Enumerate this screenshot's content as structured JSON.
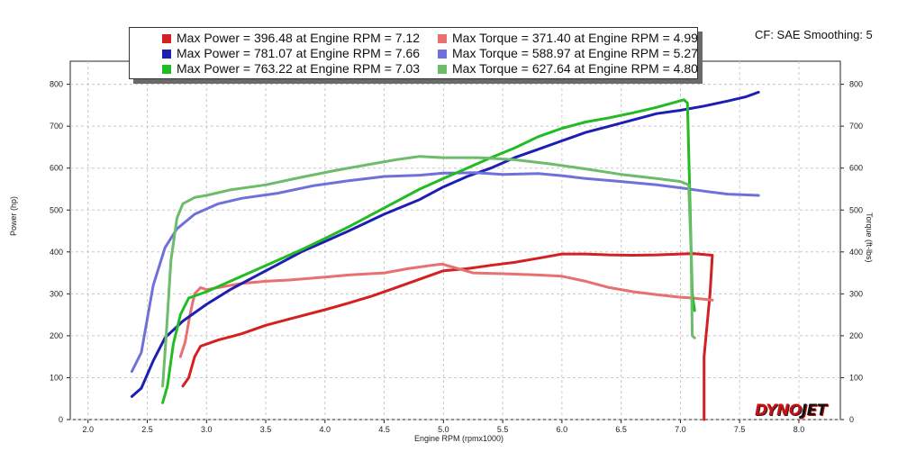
{
  "header": {
    "cf_label": "CF: SAE Smoothing: 5"
  },
  "logo": {
    "part1": "DYNO",
    "part2": "JET"
  },
  "chart_data": {
    "type": "line",
    "xlabel": "Engine RPM (rpmx1000)",
    "ylabel_left": "Power (hp)",
    "ylabel_right": "Torque (ft-lbs)",
    "xlim": [
      1.85,
      8.35
    ],
    "ylim": [
      0,
      855
    ],
    "x_ticks": [
      "2.0",
      "2.5",
      "3.0",
      "3.5",
      "4.0",
      "4.5",
      "5.0",
      "5.5",
      "6.0",
      "6.5",
      "7.0",
      "7.5",
      "8.0"
    ],
    "y_ticks": [
      "0",
      "100",
      "200",
      "300",
      "400",
      "500",
      "600",
      "700",
      "800"
    ],
    "grid": true,
    "legend": [
      {
        "label": "Max Power = 396.48 at Engine RPM = 7.12",
        "color": "#d42020"
      },
      {
        "label": "Max Torque = 371.40 at Engine RPM = 4.99",
        "color": "#e87070"
      },
      {
        "label": "Max Power = 781.07 at Engine RPM = 7.66",
        "color": "#1e1eb4"
      },
      {
        "label": "Max Torque = 588.97 at Engine RPM = 5.27",
        "color": "#7070dc"
      },
      {
        "label": "Max Power = 763.22 at Engine RPM = 7.03",
        "color": "#22bb22"
      },
      {
        "label": "Max Torque = 627.64 at Engine RPM = 4.80",
        "color": "#6cbc6c"
      }
    ],
    "series": [
      {
        "color": "#d42020",
        "points": [
          [
            2.8,
            80
          ],
          [
            2.85,
            100
          ],
          [
            2.9,
            150
          ],
          [
            2.95,
            175
          ],
          [
            3.0,
            180
          ],
          [
            3.1,
            190
          ],
          [
            3.3,
            205
          ],
          [
            3.5,
            225
          ],
          [
            3.7,
            240
          ],
          [
            4.0,
            262
          ],
          [
            4.2,
            278
          ],
          [
            4.4,
            295
          ],
          [
            4.6,
            315
          ],
          [
            4.8,
            335
          ],
          [
            5.0,
            355
          ],
          [
            5.2,
            360
          ],
          [
            5.4,
            368
          ],
          [
            5.6,
            375
          ],
          [
            5.8,
            385
          ],
          [
            6.0,
            395
          ],
          [
            6.2,
            395
          ],
          [
            6.4,
            393
          ],
          [
            6.6,
            392
          ],
          [
            6.8,
            393
          ],
          [
            7.0,
            395
          ],
          [
            7.12,
            396
          ],
          [
            7.27,
            392
          ],
          [
            7.25,
            300
          ],
          [
            7.2,
            150
          ],
          [
            7.2,
            0
          ]
        ]
      },
      {
        "color": "#e87070",
        "points": [
          [
            2.78,
            150
          ],
          [
            2.82,
            185
          ],
          [
            2.86,
            250
          ],
          [
            2.9,
            300
          ],
          [
            2.95,
            315
          ],
          [
            3.0,
            310
          ],
          [
            3.1,
            315
          ],
          [
            3.3,
            325
          ],
          [
            3.5,
            330
          ],
          [
            3.7,
            333
          ],
          [
            4.0,
            340
          ],
          [
            4.2,
            345
          ],
          [
            4.5,
            350
          ],
          [
            4.7,
            360
          ],
          [
            4.9,
            368
          ],
          [
            4.99,
            371
          ],
          [
            5.1,
            362
          ],
          [
            5.25,
            350
          ],
          [
            5.5,
            348
          ],
          [
            5.8,
            345
          ],
          [
            6.0,
            342
          ],
          [
            6.2,
            330
          ],
          [
            6.4,
            315
          ],
          [
            6.6,
            305
          ],
          [
            6.8,
            298
          ],
          [
            7.0,
            292
          ],
          [
            7.1,
            290
          ],
          [
            7.27,
            285
          ]
        ]
      },
      {
        "color": "#1e1eb4",
        "points": [
          [
            2.37,
            55
          ],
          [
            2.45,
            75
          ],
          [
            2.55,
            140
          ],
          [
            2.65,
            195
          ],
          [
            2.8,
            235
          ],
          [
            3.0,
            275
          ],
          [
            3.2,
            310
          ],
          [
            3.4,
            340
          ],
          [
            3.6,
            370
          ],
          [
            3.8,
            400
          ],
          [
            4.0,
            425
          ],
          [
            4.2,
            450
          ],
          [
            4.5,
            490
          ],
          [
            4.8,
            525
          ],
          [
            5.0,
            555
          ],
          [
            5.2,
            580
          ],
          [
            5.4,
            600
          ],
          [
            5.6,
            625
          ],
          [
            5.8,
            645
          ],
          [
            6.0,
            665
          ],
          [
            6.2,
            685
          ],
          [
            6.4,
            700
          ],
          [
            6.6,
            715
          ],
          [
            6.8,
            730
          ],
          [
            7.0,
            738
          ],
          [
            7.2,
            748
          ],
          [
            7.4,
            760
          ],
          [
            7.55,
            770
          ],
          [
            7.66,
            781
          ]
        ]
      },
      {
        "color": "#7070dc",
        "points": [
          [
            2.37,
            115
          ],
          [
            2.45,
            160
          ],
          [
            2.55,
            320
          ],
          [
            2.65,
            410
          ],
          [
            2.75,
            455
          ],
          [
            2.9,
            490
          ],
          [
            3.1,
            515
          ],
          [
            3.3,
            528
          ],
          [
            3.6,
            540
          ],
          [
            3.9,
            558
          ],
          [
            4.2,
            570
          ],
          [
            4.5,
            580
          ],
          [
            4.8,
            583
          ],
          [
            5.0,
            588
          ],
          [
            5.27,
            589
          ],
          [
            5.5,
            585
          ],
          [
            5.8,
            587
          ],
          [
            6.0,
            582
          ],
          [
            6.2,
            575
          ],
          [
            6.5,
            568
          ],
          [
            6.8,
            560
          ],
          [
            7.0,
            553
          ],
          [
            7.2,
            545
          ],
          [
            7.4,
            538
          ],
          [
            7.66,
            535
          ]
        ]
      },
      {
        "color": "#22bb22",
        "points": [
          [
            2.63,
            40
          ],
          [
            2.67,
            80
          ],
          [
            2.72,
            180
          ],
          [
            2.78,
            250
          ],
          [
            2.85,
            290
          ],
          [
            3.0,
            305
          ],
          [
            3.2,
            330
          ],
          [
            3.4,
            355
          ],
          [
            3.6,
            380
          ],
          [
            3.8,
            405
          ],
          [
            4.0,
            432
          ],
          [
            4.2,
            460
          ],
          [
            4.5,
            505
          ],
          [
            4.8,
            550
          ],
          [
            5.0,
            575
          ],
          [
            5.2,
            600
          ],
          [
            5.4,
            625
          ],
          [
            5.6,
            648
          ],
          [
            5.8,
            675
          ],
          [
            6.0,
            695
          ],
          [
            6.2,
            710
          ],
          [
            6.4,
            720
          ],
          [
            6.6,
            732
          ],
          [
            6.8,
            745
          ],
          [
            7.03,
            763
          ],
          [
            7.06,
            755
          ],
          [
            7.1,
            300
          ],
          [
            7.12,
            260
          ]
        ]
      },
      {
        "color": "#6cbc6c",
        "points": [
          [
            2.63,
            80
          ],
          [
            2.66,
            200
          ],
          [
            2.7,
            380
          ],
          [
            2.75,
            480
          ],
          [
            2.8,
            515
          ],
          [
            2.9,
            530
          ],
          [
            3.0,
            535
          ],
          [
            3.2,
            548
          ],
          [
            3.5,
            560
          ],
          [
            3.8,
            578
          ],
          [
            4.1,
            595
          ],
          [
            4.4,
            610
          ],
          [
            4.6,
            620
          ],
          [
            4.8,
            628
          ],
          [
            5.0,
            625
          ],
          [
            5.3,
            625
          ],
          [
            5.6,
            620
          ],
          [
            5.9,
            610
          ],
          [
            6.2,
            598
          ],
          [
            6.5,
            585
          ],
          [
            6.8,
            575
          ],
          [
            7.0,
            568
          ],
          [
            7.07,
            560
          ],
          [
            7.09,
            400
          ],
          [
            7.1,
            200
          ],
          [
            7.12,
            195
          ]
        ]
      }
    ]
  }
}
